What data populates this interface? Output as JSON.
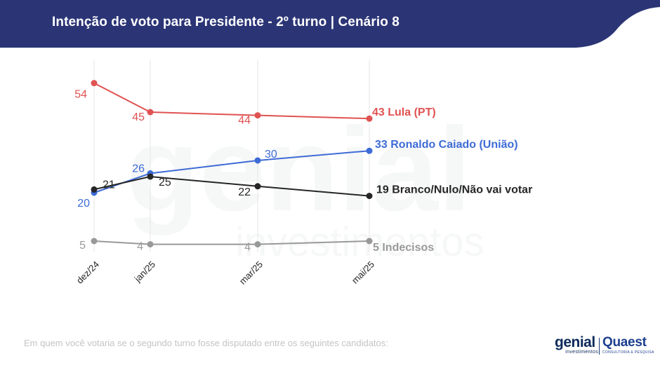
{
  "header": {
    "title": "Intenção de voto para Presidente - 2º turno | Cenário 8",
    "color": "#2b3576"
  },
  "footnote": "Em quem você votaria se o segundo turno fosse disputado entre os seguintes candidatos:",
  "logos": {
    "genial": {
      "brand": "genial",
      "sub": "investimentos"
    },
    "quaest": {
      "brand": "Quaest",
      "sub": "CONSULTORIA & PESQUISA"
    }
  },
  "chart_data": {
    "type": "line",
    "categories": [
      "dez/24",
      "jan/25",
      "mar/25",
      "mai/25"
    ],
    "ylim": [
      0,
      60
    ],
    "grid": "vertical",
    "legend": "end-of-line labels",
    "series": [
      {
        "name": "Lula (PT)",
        "end_label": "43 Lula (PT)",
        "color": "#e05252",
        "values": [
          54,
          45,
          44,
          43
        ]
      },
      {
        "name": "Ronaldo Caiado (União)",
        "end_label": "33 Ronaldo Caiado (União)",
        "color": "#3d6bd6",
        "values": [
          20,
          26,
          30,
          33
        ]
      },
      {
        "name": "Branco/Nulo/Não vai votar",
        "end_label": "19 Branco/Nulo/Não vai votar",
        "color": "#262626",
        "values": [
          21,
          25,
          22,
          19
        ]
      },
      {
        "name": "Indecisos",
        "end_label": "5 Indecisos",
        "color": "#999999",
        "values": [
          5,
          4,
          4,
          5
        ]
      }
    ]
  }
}
